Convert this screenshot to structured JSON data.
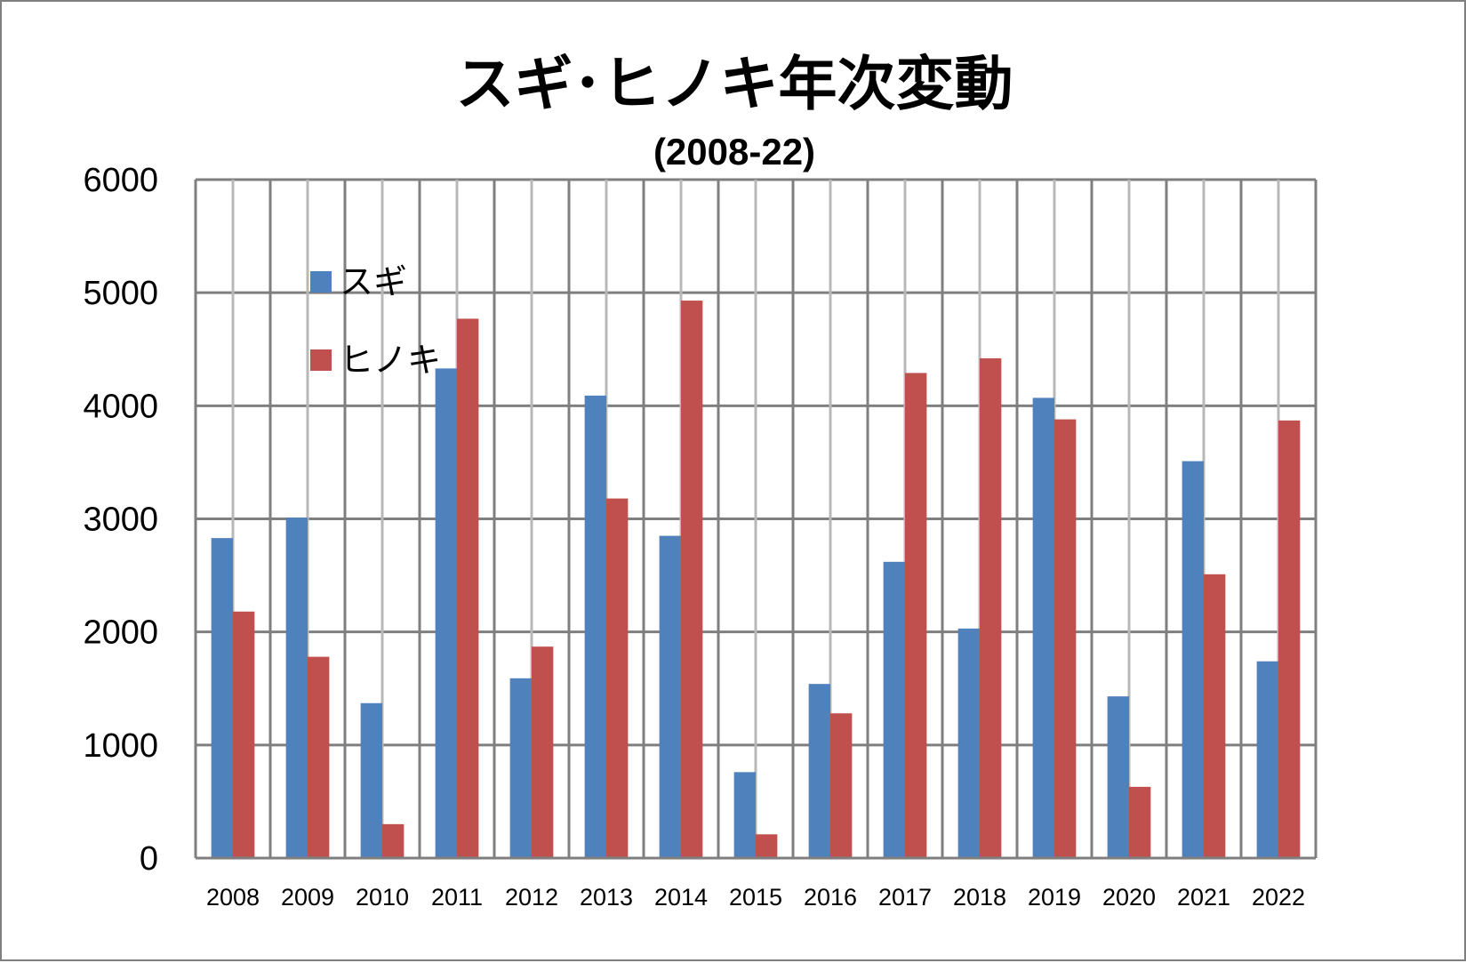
{
  "chart_data": {
    "type": "bar",
    "title": "スギ･ヒノキ年次変動",
    "subtitle": "(2008-22)",
    "xlabel": "",
    "ylabel": "",
    "ylim": [
      0,
      6000
    ],
    "yticks": [
      0,
      1000,
      2000,
      3000,
      4000,
      5000,
      6000
    ],
    "grid": true,
    "legend_position": "top-left",
    "categories": [
      "2008",
      "2009",
      "2010",
      "2011",
      "2012",
      "2013",
      "2014",
      "2015",
      "2016",
      "2017",
      "2018",
      "2019",
      "2020",
      "2021",
      "2022"
    ],
    "series": [
      {
        "name": "スギ",
        "color": "#4f81bd",
        "values": [
          2830,
          3010,
          1370,
          4330,
          1590,
          4090,
          2850,
          760,
          1540,
          2620,
          2030,
          4070,
          1430,
          3510,
          1740
        ]
      },
      {
        "name": "ヒノキ",
        "color": "#c0504d",
        "values": [
          2180,
          1780,
          300,
          4770,
          1870,
          3180,
          4930,
          210,
          1280,
          4290,
          4420,
          3880,
          630,
          2510,
          3870
        ]
      }
    ]
  }
}
